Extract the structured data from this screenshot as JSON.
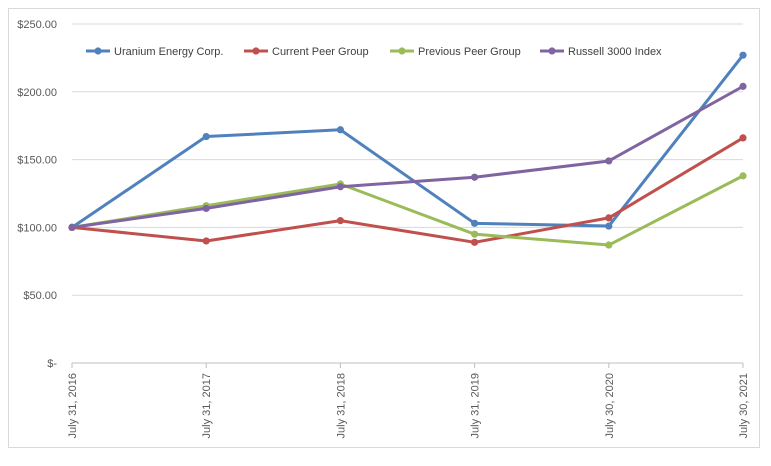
{
  "chart_data": {
    "type": "line",
    "title": "",
    "xlabel": "",
    "ylabel": "",
    "categories": [
      "July 31, 2016",
      "July 31, 2017",
      "July 31, 2018",
      "July 31, 2019",
      "July 30, 2020",
      "July 30, 2021"
    ],
    "y_ticks": [
      0,
      50,
      100,
      150,
      200,
      250
    ],
    "y_tick_labels": [
      "$-",
      "$50.00",
      "$100.00",
      "$150.00",
      "$200.00",
      "$250.00"
    ],
    "ylim": [
      0,
      250
    ],
    "grid": true,
    "legend_position": "top",
    "series": [
      {
        "name": "Uranium Energy Corp.",
        "color": "#4f81bd",
        "values": [
          100,
          167,
          172,
          103,
          101,
          227
        ]
      },
      {
        "name": "Current Peer Group",
        "color": "#c0504d",
        "values": [
          100,
          90,
          105,
          89,
          107,
          166
        ]
      },
      {
        "name": "Previous Peer Group",
        "color": "#9bbb59",
        "values": [
          100,
          116,
          132,
          95,
          87,
          138
        ]
      },
      {
        "name": "Russell 3000 Index",
        "color": "#8064a2",
        "values": [
          100,
          114,
          130,
          137,
          149,
          204
        ]
      }
    ]
  }
}
